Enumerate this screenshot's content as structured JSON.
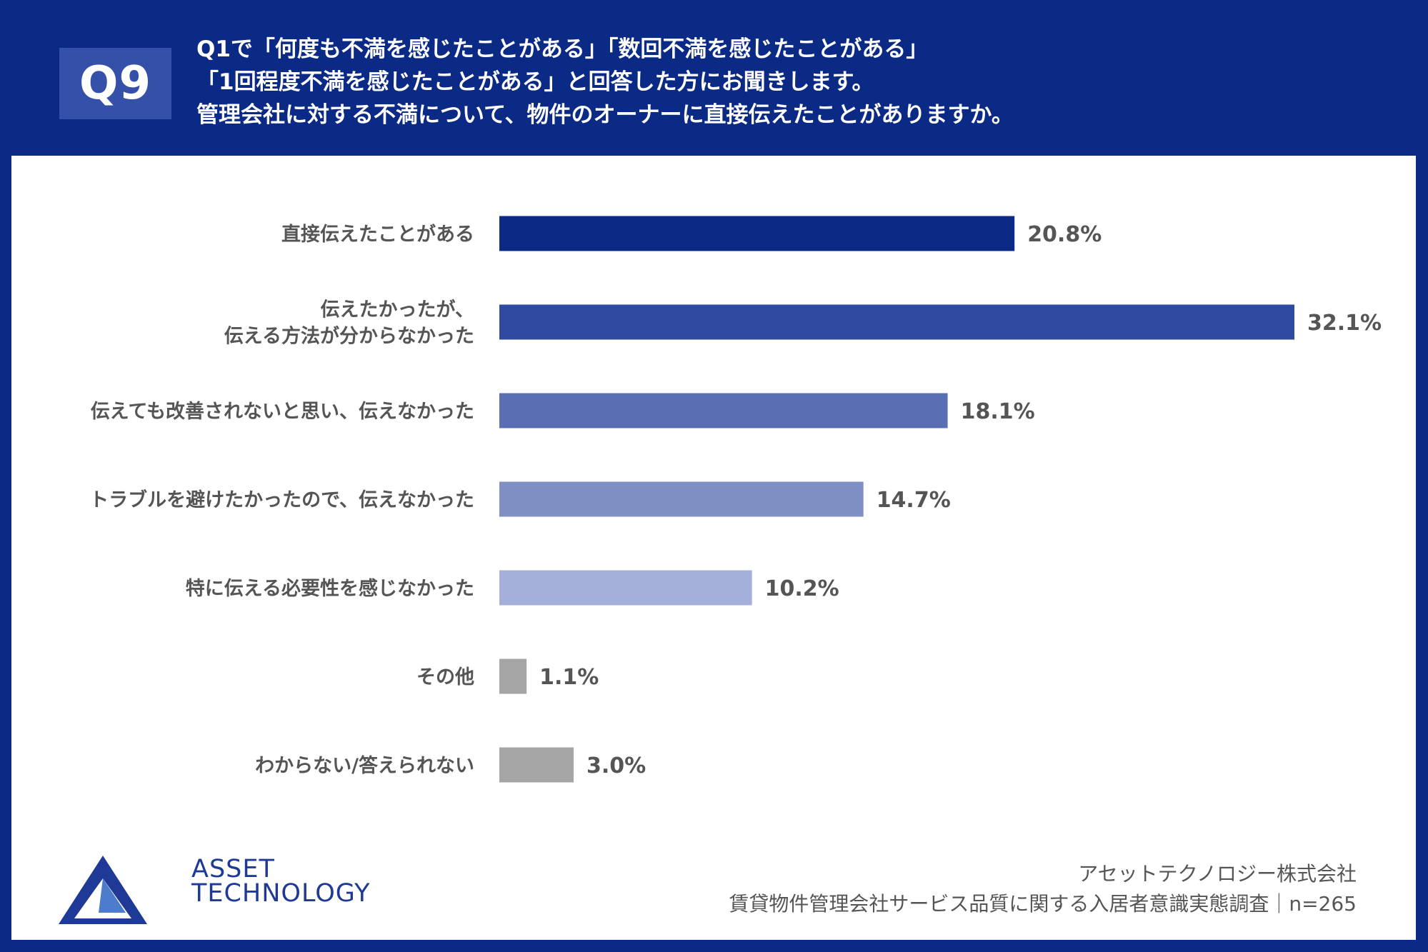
{
  "header": {
    "badge": "Q9",
    "lines": [
      "Q1で「何度も不満を感じたことがある」「数回不満を感じたことがある」",
      "「1回程度不満を感じたことがある」と回答した方にお聞きします。",
      "管理会社に対する不満について、物件のオーナーに直接伝えたことがありますか。"
    ]
  },
  "chart_data": {
    "type": "bar",
    "orientation": "horizontal",
    "title": "",
    "xlabel": "",
    "ylabel": "",
    "unit": "%",
    "xlim": [
      0,
      32.1
    ],
    "categories": [
      [
        "直接伝えたことがある"
      ],
      [
        "伝えたかったが、",
        "伝える方法が分からなかった"
      ],
      [
        "伝えても改善されないと思い、伝えなかった"
      ],
      [
        "トラブルを避けたかったので、伝えなかった"
      ],
      [
        "特に伝える必要性を感じなかった"
      ],
      [
        "その他"
      ],
      [
        "わからない/答えられない"
      ]
    ],
    "values": [
      20.8,
      32.1,
      18.1,
      14.7,
      10.2,
      1.1,
      3.0
    ],
    "value_labels": [
      "20.8%",
      "32.1%",
      "18.1%",
      "14.7%",
      "10.2%",
      "1.1%",
      "3.0%"
    ],
    "bar_colors": [
      "#0a2a86",
      "#2f4a9e",
      "#5a6fb3",
      "#7f8fc4",
      "#a4b0da",
      "#a5a5a5",
      "#a5a5a5"
    ]
  },
  "footer": {
    "logo_line1": "ASSET",
    "logo_line2": "TECHNOLOGY",
    "company": "アセットテクノロジー株式会社",
    "survey": "賃貸物件管理会社サービス品質に関する入居者意識実態調査｜n=265"
  },
  "colors": {
    "header_bg": "#0a2a86",
    "badge_bg": "#3450a8",
    "text_gray": "#555555"
  }
}
